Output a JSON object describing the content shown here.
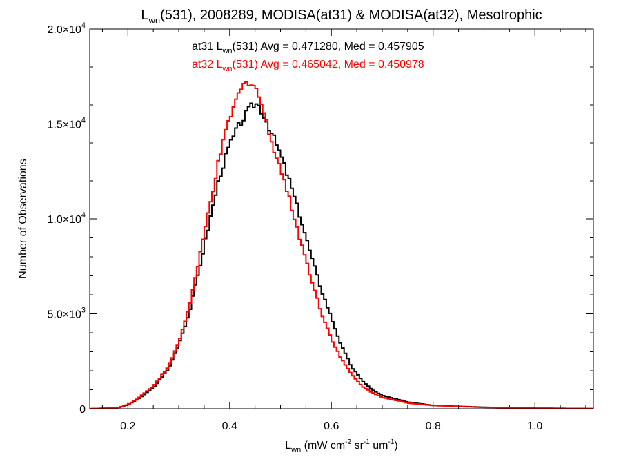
{
  "chart_data": {
    "type": "line",
    "title": {
      "main": "L",
      "sub": "wn",
      "rest": "(531), 2008289, MODISA(at31) & MODISA(at32), Mesotrophic"
    },
    "xlabel": {
      "main": "L",
      "sub": "wn",
      "p1": " (mW cm",
      "s1": "-2",
      "p2": " sr",
      "s2": "-1",
      "p3": " um",
      "s3": "-1",
      "p4": ")"
    },
    "ylabel": "Number of Observations",
    "xlim": [
      0.125,
      1.115
    ],
    "ylim": [
      0,
      20000
    ],
    "x_ticks": [
      {
        "value": 0.2,
        "label": "0.2"
      },
      {
        "value": 0.4,
        "label": "0.4"
      },
      {
        "value": 0.6,
        "label": "0.6"
      },
      {
        "value": 0.8,
        "label": "0.8"
      },
      {
        "value": 1.0,
        "label": "1.0"
      }
    ],
    "y_ticks": [
      {
        "value": 0,
        "mantissa": "0",
        "exp": ""
      },
      {
        "value": 5000,
        "mantissa": "5.0×10",
        "exp": "3"
      },
      {
        "value": 10000,
        "mantissa": "1.0×10",
        "exp": "4"
      },
      {
        "value": 15000,
        "mantissa": "1.5×10",
        "exp": "4"
      },
      {
        "value": 20000,
        "mantissa": "2.0×10",
        "exp": "4"
      }
    ],
    "grid": false,
    "legend_position": "top-center",
    "legend": [
      {
        "prefix": "at31 L",
        "sub": "wn",
        "suffix": "(531) Avg = 0.471280, Med = 0.457905",
        "color": "#000000"
      },
      {
        "prefix": "at32 L",
        "sub": "wn",
        "suffix": "(531) Avg = 0.465042, Med = 0.450978",
        "color": "#ff0000"
      }
    ],
    "series": [
      {
        "color": "#000000",
        "points": [
          [
            0.125,
            0
          ],
          [
            0.18,
            50
          ],
          [
            0.2,
            200
          ],
          [
            0.22,
            500
          ],
          [
            0.25,
            1100
          ],
          [
            0.28,
            2100
          ],
          [
            0.3,
            3400
          ],
          [
            0.32,
            5000
          ],
          [
            0.34,
            7300
          ],
          [
            0.36,
            9800
          ],
          [
            0.38,
            12200
          ],
          [
            0.4,
            13900
          ],
          [
            0.42,
            15000
          ],
          [
            0.44,
            15800
          ],
          [
            0.45,
            16100
          ],
          [
            0.46,
            15900
          ],
          [
            0.47,
            15300
          ],
          [
            0.48,
            14700
          ],
          [
            0.5,
            13400
          ],
          [
            0.52,
            11800
          ],
          [
            0.54,
            10000
          ],
          [
            0.56,
            8100
          ],
          [
            0.58,
            6300
          ],
          [
            0.6,
            4800
          ],
          [
            0.62,
            3300
          ],
          [
            0.64,
            2200
          ],
          [
            0.66,
            1500
          ],
          [
            0.68,
            1000
          ],
          [
            0.7,
            700
          ],
          [
            0.75,
            350
          ],
          [
            0.8,
            180
          ],
          [
            0.9,
            80
          ],
          [
            1.0,
            30
          ],
          [
            1.115,
            10
          ]
        ]
      },
      {
        "color": "#ff0000",
        "points": [
          [
            0.125,
            0
          ],
          [
            0.18,
            50
          ],
          [
            0.2,
            220
          ],
          [
            0.22,
            550
          ],
          [
            0.25,
            1200
          ],
          [
            0.28,
            2200
          ],
          [
            0.3,
            3500
          ],
          [
            0.32,
            5300
          ],
          [
            0.34,
            7800
          ],
          [
            0.36,
            10600
          ],
          [
            0.38,
            13200
          ],
          [
            0.4,
            15300
          ],
          [
            0.42,
            16700
          ],
          [
            0.43,
            17100
          ],
          [
            0.44,
            17300
          ],
          [
            0.45,
            17000
          ],
          [
            0.46,
            16300
          ],
          [
            0.47,
            15300
          ],
          [
            0.48,
            14300
          ],
          [
            0.5,
            12700
          ],
          [
            0.52,
            10800
          ],
          [
            0.54,
            8800
          ],
          [
            0.56,
            6900
          ],
          [
            0.58,
            5100
          ],
          [
            0.6,
            3700
          ],
          [
            0.62,
            2600
          ],
          [
            0.64,
            1800
          ],
          [
            0.66,
            1200
          ],
          [
            0.68,
            850
          ],
          [
            0.7,
            600
          ],
          [
            0.75,
            300
          ],
          [
            0.8,
            170
          ],
          [
            0.9,
            70
          ],
          [
            1.0,
            30
          ],
          [
            1.115,
            10
          ]
        ]
      }
    ]
  }
}
